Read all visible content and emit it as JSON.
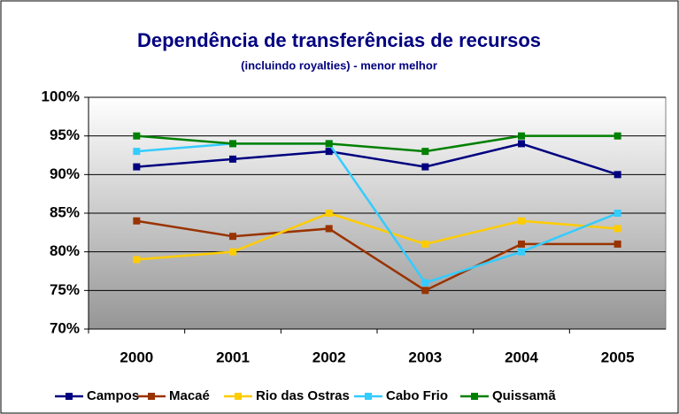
{
  "chart_data": {
    "type": "line",
    "title": "Dependência de transferências de recursos",
    "subtitle": "(incluindo royalties) - menor melhor",
    "categories": [
      "2000",
      "2001",
      "2002",
      "2003",
      "2004",
      "2005"
    ],
    "series": [
      {
        "name": "Campos",
        "color": "#000080",
        "values": [
          91,
          92,
          93,
          91,
          94,
          90
        ]
      },
      {
        "name": "Macaé",
        "color": "#993300",
        "values": [
          84,
          82,
          83,
          75,
          81,
          81
        ]
      },
      {
        "name": "Rio das Ostras",
        "color": "#FFCC00",
        "values": [
          79,
          80,
          85,
          81,
          84,
          83
        ]
      },
      {
        "name": "Cabo Frio",
        "color": "#33CCFF",
        "values": [
          93,
          94,
          94,
          76,
          80,
          85
        ]
      },
      {
        "name": "Quissamã",
        "color": "#008000",
        "values": [
          95,
          94,
          94,
          93,
          95,
          95
        ]
      }
    ],
    "ylim": [
      70,
      100
    ],
    "yticks": [
      {
        "value": 70,
        "label": "70%"
      },
      {
        "value": 75,
        "label": "75%"
      },
      {
        "value": 80,
        "label": "80%"
      },
      {
        "value": 85,
        "label": "85%"
      },
      {
        "value": 90,
        "label": "90%"
      },
      {
        "value": 95,
        "label": "95%"
      },
      {
        "value": 100,
        "label": "100%"
      }
    ],
    "grid": true,
    "legend": "bottom"
  }
}
